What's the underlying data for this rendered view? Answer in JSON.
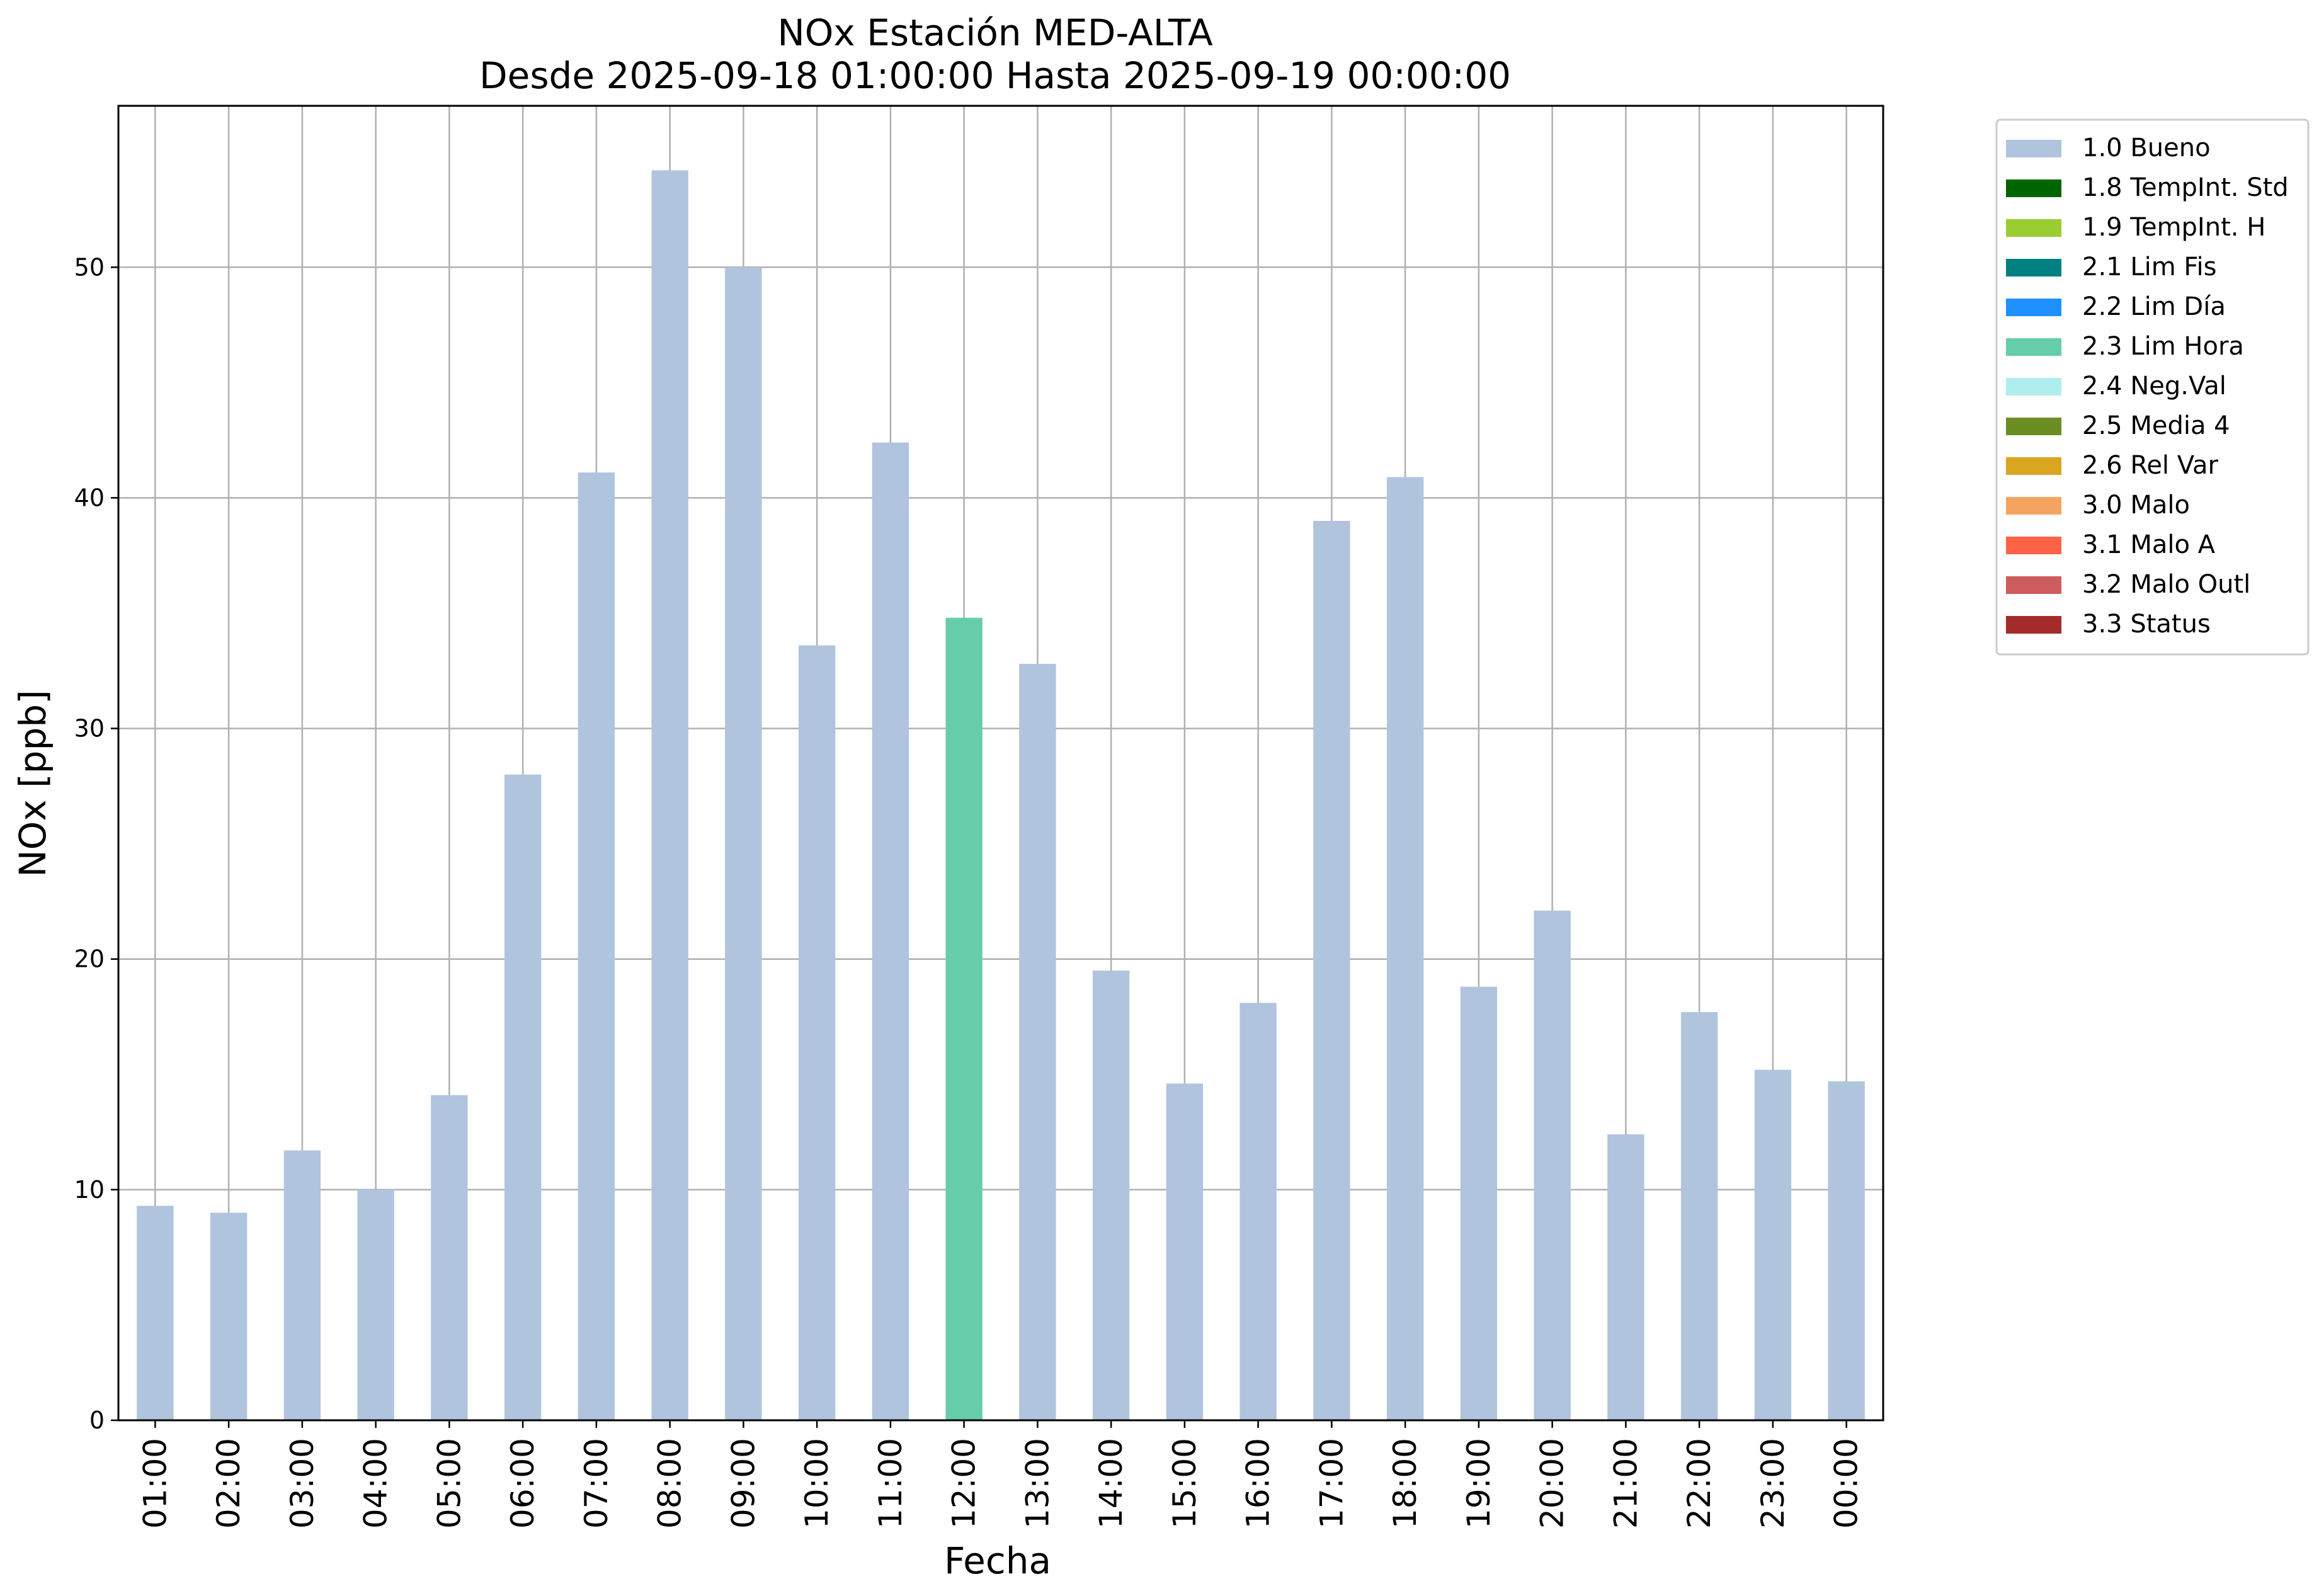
{
  "chart_data": {
    "type": "bar",
    "title": "NOx Estación MED-ALTA",
    "subtitle": "Desde 2025-09-18 01:00:00 Hasta 2025-09-19 00:00:00",
    "xlabel": "Fecha",
    "ylabel": "NOx [ppb]",
    "ylim": [
      0,
      57
    ],
    "yticks": [
      0,
      10,
      20,
      30,
      40,
      50
    ],
    "grid": true,
    "legend_position": "outside-top-right",
    "categories": [
      "01:00",
      "02:00",
      "03:00",
      "04:00",
      "05:00",
      "06:00",
      "07:00",
      "08:00",
      "09:00",
      "10:00",
      "11:00",
      "12:00",
      "13:00",
      "14:00",
      "15:00",
      "16:00",
      "17:00",
      "18:00",
      "19:00",
      "20:00",
      "21:00",
      "22:00",
      "23:00",
      "00:00"
    ],
    "values": [
      9.3,
      9.0,
      11.7,
      10.0,
      14.1,
      28.0,
      41.1,
      54.2,
      50.0,
      33.6,
      42.4,
      34.8,
      32.8,
      19.5,
      14.6,
      18.1,
      39.0,
      40.9,
      18.8,
      22.1,
      12.4,
      17.7,
      15.2,
      14.7
    ],
    "flags": [
      "1.0 Bueno",
      "1.0 Bueno",
      "1.0 Bueno",
      "1.0 Bueno",
      "1.0 Bueno",
      "1.0 Bueno",
      "1.0 Bueno",
      "1.0 Bueno",
      "1.0 Bueno",
      "1.0 Bueno",
      "1.0 Bueno",
      "2.3 Lim Hora",
      "1.0 Bueno",
      "1.0 Bueno",
      "1.0 Bueno",
      "1.0 Bueno",
      "1.0 Bueno",
      "1.0 Bueno",
      "1.0 Bueno",
      "1.0 Bueno",
      "1.0 Bueno",
      "1.0 Bueno",
      "1.0 Bueno",
      "1.0 Bueno"
    ],
    "legend": [
      {
        "name": "1.0 Bueno",
        "color": "#b0c4de"
      },
      {
        "name": "1.8 TempInt. Std",
        "color": "#006400"
      },
      {
        "name": "1.9 TempInt. H",
        "color": "#9acd32"
      },
      {
        "name": "2.1 Lim Fis",
        "color": "#008080"
      },
      {
        "name": "2.2 Lim Día",
        "color": "#1e90ff"
      },
      {
        "name": "2.3 Lim Hora",
        "color": "#66cdaa"
      },
      {
        "name": "2.4 Neg.Val",
        "color": "#afeeee"
      },
      {
        "name": "2.5 Media 4",
        "color": "#6b8e23"
      },
      {
        "name": "2.6 Rel Var",
        "color": "#daa520"
      },
      {
        "name": "3.0 Malo",
        "color": "#f4a460"
      },
      {
        "name": "3.1 Malo A",
        "color": "#ff6347"
      },
      {
        "name": "3.2 Malo Outl",
        "color": "#cd5c5c"
      },
      {
        "name": "3.3 Status",
        "color": "#a52a2a"
      }
    ]
  }
}
